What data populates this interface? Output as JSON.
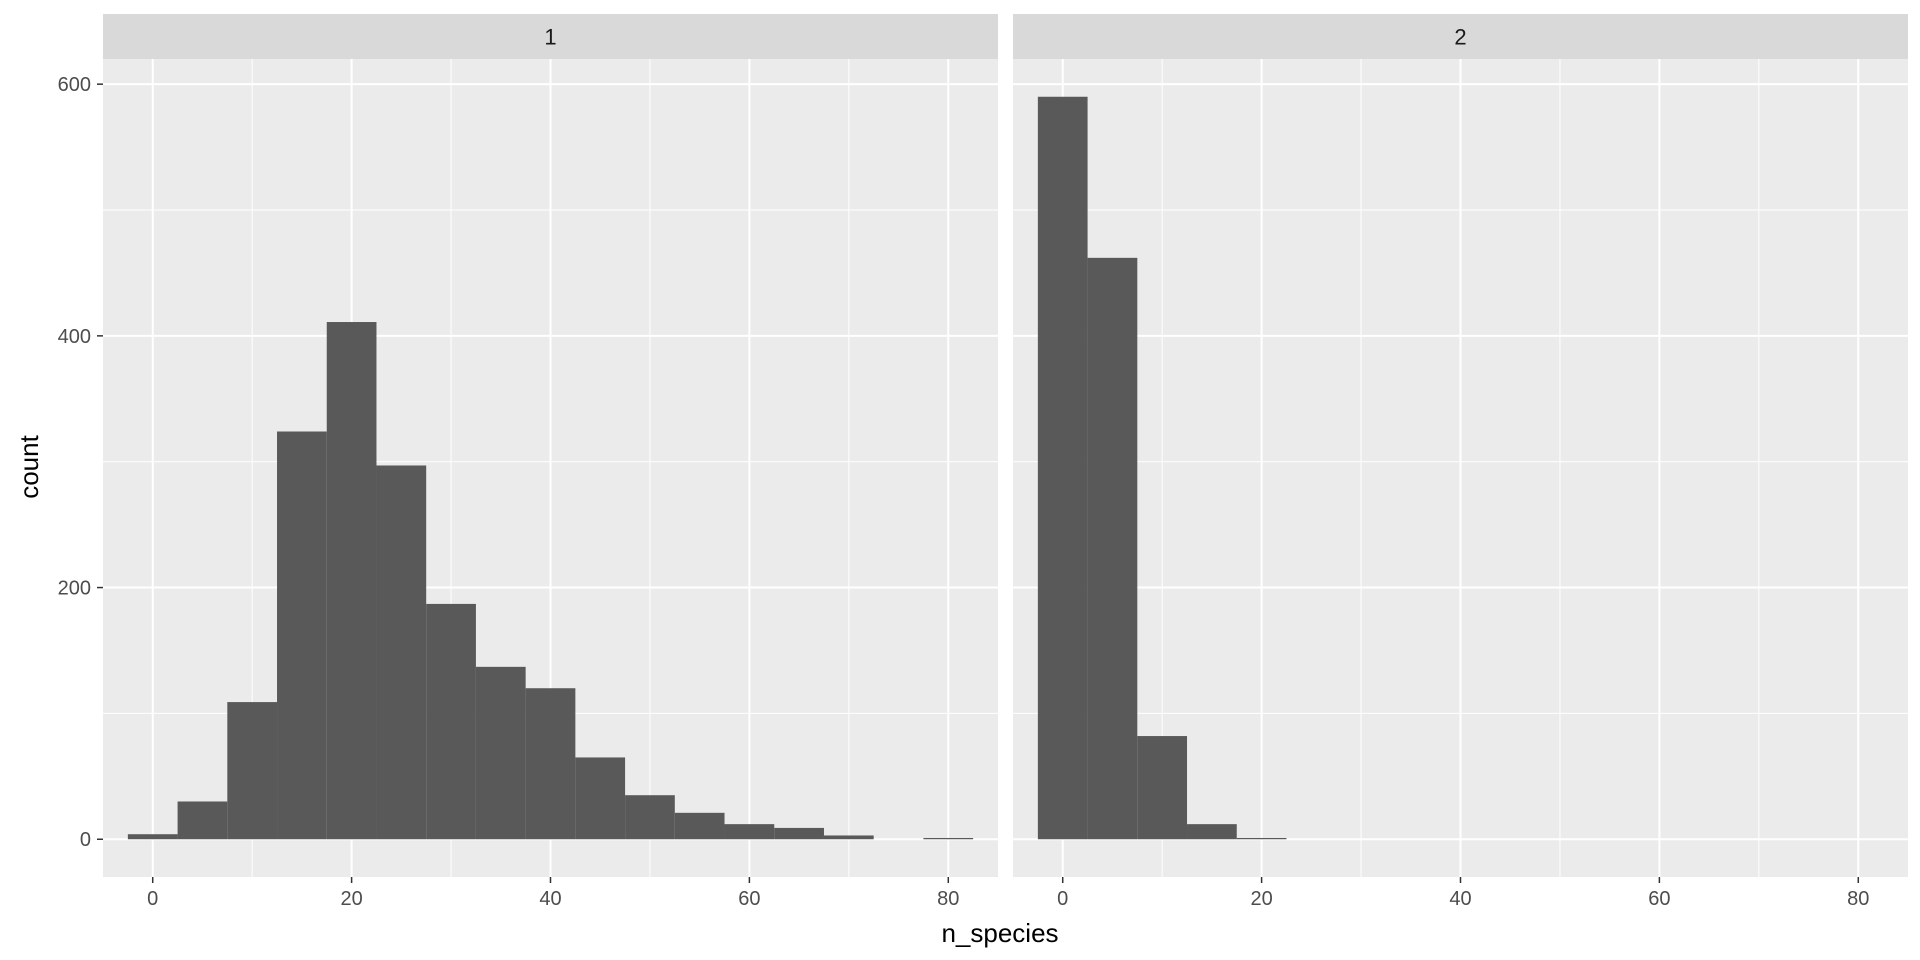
{
  "chart_data": {
    "type": "bar",
    "layout": "facet_wrap",
    "xlabel": "n_species",
    "ylabel": "count",
    "xlim": [
      -5,
      85
    ],
    "ylim": [
      -30,
      620
    ],
    "x_ticks": [
      "0",
      "20",
      "40",
      "60",
      "80"
    ],
    "y_ticks": [
      "0",
      "200",
      "400",
      "600"
    ],
    "grid": true,
    "bin_width": 5,
    "colors": {
      "panel_bg": "#ebebeb",
      "strip_bg": "#d9d9d9",
      "bar_fill": "#595959",
      "grid": "#ffffff"
    },
    "panels": [
      {
        "strip": "1",
        "bins": [
          {
            "x": 0,
            "count": 4
          },
          {
            "x": 5,
            "count": 30
          },
          {
            "x": 10,
            "count": 109
          },
          {
            "x": 15,
            "count": 324
          },
          {
            "x": 20,
            "count": 411
          },
          {
            "x": 25,
            "count": 297
          },
          {
            "x": 30,
            "count": 187
          },
          {
            "x": 35,
            "count": 137
          },
          {
            "x": 40,
            "count": 120
          },
          {
            "x": 45,
            "count": 65
          },
          {
            "x": 50,
            "count": 35
          },
          {
            "x": 55,
            "count": 21
          },
          {
            "x": 60,
            "count": 12
          },
          {
            "x": 65,
            "count": 9
          },
          {
            "x": 70,
            "count": 3
          },
          {
            "x": 75,
            "count": 0
          },
          {
            "x": 80,
            "count": 1
          }
        ]
      },
      {
        "strip": "2",
        "bins": [
          {
            "x": 0,
            "count": 590
          },
          {
            "x": 5,
            "count": 462
          },
          {
            "x": 10,
            "count": 82
          },
          {
            "x": 15,
            "count": 12
          },
          {
            "x": 20,
            "count": 1
          }
        ]
      }
    ]
  }
}
